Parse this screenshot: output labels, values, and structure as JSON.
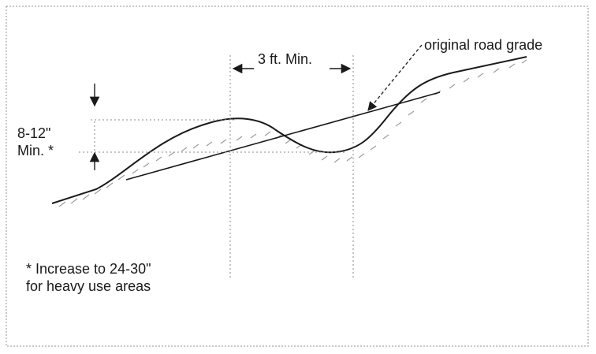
{
  "labels": {
    "original_grade": "original road grade",
    "min_spacing": "3 ft. Min.",
    "height_line1": "8-12\"",
    "height_line2": "Min. *",
    "footnote_line1": "* Increase to 24-30\"",
    "footnote_line2": "for heavy use areas"
  },
  "colors": {
    "ink": "#1a1a1a",
    "guide": "#8a8a8a",
    "hatch": "#9a9a9a",
    "frame": "#b5b5b5"
  }
}
